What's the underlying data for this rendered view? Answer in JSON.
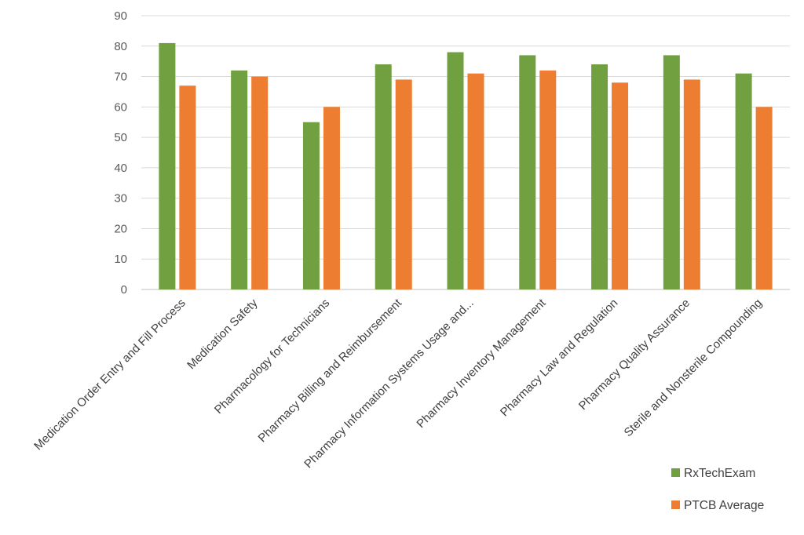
{
  "chart_data": {
    "type": "bar",
    "categories": [
      "Medication Order Entry and Fill Process",
      "Medication Safety",
      "Pharmacology for Technicians",
      "Pharmacy Billing and Reimbursement",
      "Pharmacy Information Systems Usage and...",
      "Pharmacy Inventory Management",
      "Pharmacy Law and Regulation",
      "Pharmacy Quality Assurance",
      "Sterile and Nonsterile Compounding"
    ],
    "series": [
      {
        "name": "RxTechExam",
        "color": "#70a040",
        "values": [
          81,
          72,
          55,
          74,
          78,
          77,
          74,
          77,
          71
        ]
      },
      {
        "name": "PTCB Average",
        "color": "#ed7d31",
        "values": [
          67,
          70,
          60,
          69,
          71,
          72,
          68,
          69,
          60
        ]
      }
    ],
    "ylim": [
      0,
      90
    ],
    "yticks": [
      0,
      10,
      20,
      30,
      40,
      50,
      60,
      70,
      80,
      90
    ],
    "grid": true,
    "legend_position": "bottom-right",
    "title": "",
    "xlabel": "",
    "ylabel": ""
  }
}
